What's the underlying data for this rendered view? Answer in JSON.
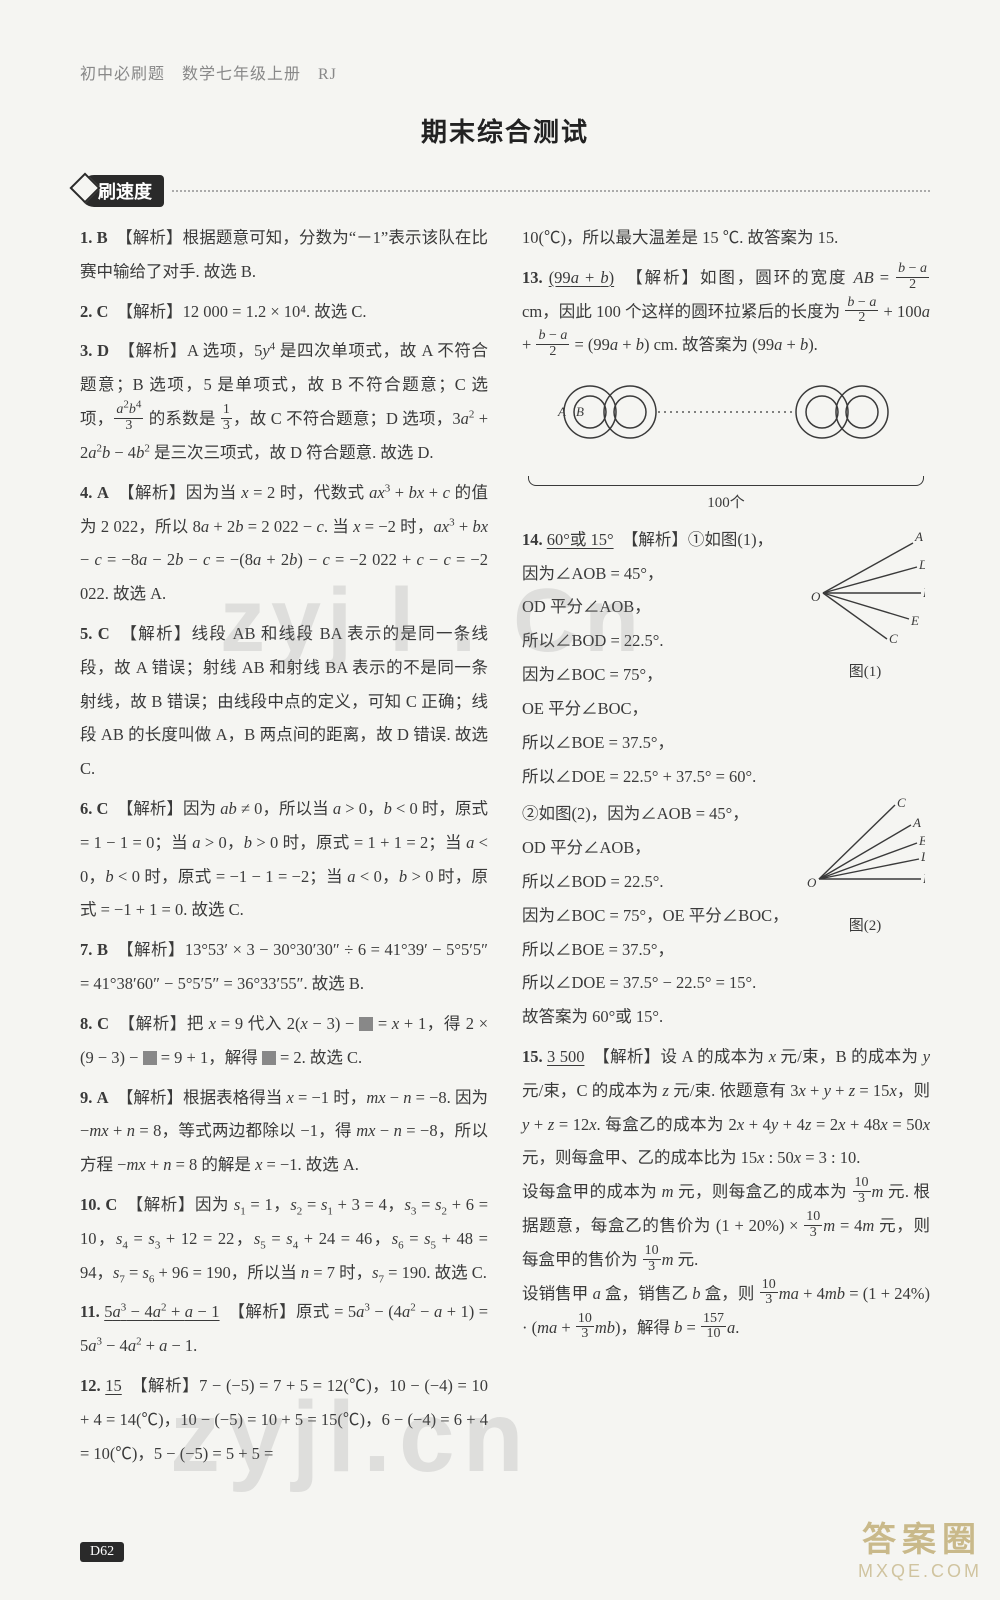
{
  "header": "初中必刷题　数学七年级上册　RJ",
  "title": "期末综合测试",
  "badge": "刷速度",
  "page_badge": "D62",
  "watermarks": {
    "wm1": "zyj l . Cn",
    "wm2": "zyjl.cn",
    "corner_a": "答案圈",
    "corner_b": "MXQE.COM"
  },
  "left": [
    {
      "num": "1.",
      "ans": "B",
      "body": "【解析】根据题意可知，分数为“－1”表示该队在比赛中输给了对手. 故选 B."
    },
    {
      "num": "2.",
      "ans": "C",
      "body": "【解析】12 000 = 1.2 × 10⁴. 故选 C."
    },
    {
      "num": "3.",
      "ans": "D",
      "body_html": "【解析】A 选项，5<span class='i'>y</span><sup>4</sup> 是四次单项式，故 A 不符合题意；B 选项，5 是单项式，故 B 不符合题意；C 选项，<span class='frac'><span class='n'><span class='i'>a</span><sup>2</sup><span class='i'>b</span><sup>4</sup></span><span class='d'>3</span></span> 的系数是 <span class='frac'><span class='n'>1</span><span class='d'>3</span></span>，故 C 不符合题意；D 选项，3<span class='i'>a</span><sup>2</sup> + 2<span class='i'>a</span><sup>2</sup><span class='i'>b</span> − 4<span class='i'>b</span><sup>2</sup> 是三次三项式，故 D 符合题意. 故选 D."
    },
    {
      "num": "4.",
      "ans": "A",
      "body_html": "【解析】因为当 <span class='i'>x</span> = 2 时，代数式 <span class='i'>ax</span><sup>3</sup> + <span class='i'>bx</span> + <span class='i'>c</span> 的值为 2 022，所以 8<span class='i'>a</span> + 2<span class='i'>b</span> = 2 022 − <span class='i'>c</span>. 当 <span class='i'>x</span> = −2 时，<span class='i'>ax</span><sup>3</sup> + <span class='i'>bx</span> − <span class='i'>c</span> = −8<span class='i'>a</span> − 2<span class='i'>b</span> − <span class='i'>c</span> = −(8<span class='i'>a</span> + 2<span class='i'>b</span>) − <span class='i'>c</span> = −2 022 + <span class='i'>c</span> − <span class='i'>c</span> = −2 022. 故选 A."
    },
    {
      "num": "5.",
      "ans": "C",
      "body": "【解析】线段 AB 和线段 BA 表示的是同一条线段，故 A 错误；射线 AB 和射线 BA 表示的不是同一条射线，故 B 错误；由线段中点的定义，可知 C 正确；线段 AB 的长度叫做 A，B 两点间的距离，故 D 错误. 故选 C."
    },
    {
      "num": "6.",
      "ans": "C",
      "body_html": "【解析】因为 <span class='i'>ab</span> ≠ 0，所以当 <span class='i'>a</span> &gt; 0，<span class='i'>b</span> &lt; 0 时，原式 = 1 − 1 = 0；当 <span class='i'>a</span> &gt; 0，<span class='i'>b</span> &gt; 0 时，原式 = 1 + 1 = 2；当 <span class='i'>a</span> &lt; 0，<span class='i'>b</span> &lt; 0 时，原式 = −1 − 1 = −2；当 <span class='i'>a</span> &lt; 0，<span class='i'>b</span> &gt; 0 时，原式 = −1 + 1 = 0. 故选 C."
    },
    {
      "num": "7.",
      "ans": "B",
      "body": "【解析】13°53′ × 3 − 30°30′30″ ÷ 6 = 41°39′ − 5°5′5″ = 41°38′60″ − 5°5′5″ = 36°33′55″. 故选 B."
    },
    {
      "num": "8.",
      "ans": "C",
      "body_html": "【解析】把 <span class='i'>x</span> = 9 代入 2(<span class='i'>x</span> − 3) − <span class='box'></span> = <span class='i'>x</span> + 1，得 2 × (9 − 3) − <span class='box'></span> = 9 + 1，解得 <span class='box'></span> = 2. 故选 C."
    },
    {
      "num": "9.",
      "ans": "A",
      "body_html": "【解析】根据表格得当 <span class='i'>x</span> = −1 时，<span class='i'>mx</span> − <span class='i'>n</span> = −8. 因为 −<span class='i'>mx</span> + <span class='i'>n</span> = 8，等式两边都除以 −1，得 <span class='i'>mx</span> − <span class='i'>n</span> = −8，所以方程 −<span class='i'>mx</span> + <span class='i'>n</span> = 8 的解是 <span class='i'>x</span> = −1. 故选 A."
    },
    {
      "num": "10.",
      "ans": "C",
      "body_html": "【解析】因为 <span class='i'>s</span><sub>1</sub> = 1，<span class='i'>s</span><sub>2</sub> = <span class='i'>s</span><sub>1</sub> + 3 = 4，<span class='i'>s</span><sub>3</sub> = <span class='i'>s</span><sub>2</sub> + 6 = 10，<span class='i'>s</span><sub>4</sub> = <span class='i'>s</span><sub>3</sub> + 12 = 22，<span class='i'>s</span><sub>5</sub> = <span class='i'>s</span><sub>4</sub> + 24 = 46，<span class='i'>s</span><sub>6</sub> = <span class='i'>s</span><sub>5</sub> + 48 = 94，<span class='i'>s</span><sub>7</sub> = <span class='i'>s</span><sub>6</sub> + 96 = 190，所以当 <span class='i'>n</span> = 7 时，<span class='i'>s</span><sub>7</sub> = 190. 故选 C."
    },
    {
      "num": "11.",
      "ans_html": "<span class='u'>5<span class='i'>a</span><sup>3</sup> − 4<span class='i'>a</span><sup>2</sup> + <span class='i'>a</span> − 1</span>",
      "body_html": "【解析】原式 = 5<span class='i'>a</span><sup>3</sup> − (4<span class='i'>a</span><sup>2</sup> − <span class='i'>a</span> + 1) = 5<span class='i'>a</span><sup>3</sup> − 4<span class='i'>a</span><sup>2</sup> + <span class='i'>a</span> − 1."
    },
    {
      "num": "12.",
      "ans_html": "<span class='u'>15</span>",
      "body": "【解析】7 − (−5) = 7 + 5 = 12(℃)，10 − (−4) = 10 + 4 = 14(℃)，10 − (−5) = 10 + 5 = 15(℃)，6 − (−4) = 6 + 4 = 10(℃)，5 − (−5) = 5 + 5 ="
    }
  ],
  "right_intro": "10(℃)，所以最大温差是 15 ℃. 故答案为 15.",
  "q13": {
    "num": "13.",
    "ans_html": "<span class='u'>(99<span class='i'>a</span> + <span class='i'>b</span>)</span>",
    "body_html": "【解析】如图，圆环的宽度 <span class='i'>AB</span> = <span class='frac'><span class='n'><span class='i'>b</span> − <span class='i'>a</span></span><span class='d'>2</span></span> cm，因此 100 个这样的圆环拉紧后的长度为 <span class='frac'><span class='n'><span class='i'>b</span> − <span class='i'>a</span></span><span class='d'>2</span></span> + 100<span class='i'>a</span> + <span class='frac'><span class='n'><span class='i'>b</span> − <span class='i'>a</span></span><span class='d'>2</span></span> = (99<span class='i'>a</span> + <span class='i'>b</span>) cm. 故答案为 (99<span class='i'>a</span> + <span class='i'>b</span>).",
    "figure": {
      "type": "ring-chain",
      "outer_r": 26,
      "inner_r": 16,
      "stroke": "#3a3a3a",
      "stroke_width": 1.5,
      "labels": [
        "A",
        "B"
      ],
      "caption": "100个"
    }
  },
  "q14": {
    "num": "14.",
    "ans_html": "<span class='u'>60°或 15°</span>",
    "lines1": [
      "【解析】①如图(1)，",
      "因为∠AOB = 45°，",
      "OD 平分∠AOB，",
      "所以∠BOD = 22.5°.",
      "因为∠BOC = 75°，",
      "OE 平分∠BOC，",
      "所以∠BOE = 37.5°，",
      "所以∠DOE = 22.5° + 37.5° = 60°."
    ],
    "lines2": [
      "②如图(2)，因为∠AOB = 45°，",
      "OD 平分∠AOB，",
      "所以∠BOD = 22.5°.",
      "因为∠BOC = 75°，OE 平分∠BOC，",
      "所以∠BOE = 37.5°，",
      "所以∠DOE = 37.5° − 22.5° = 15°.",
      "故答案为 60°或 15°."
    ],
    "fig1": {
      "type": "angle-fan",
      "labels": [
        "A",
        "D",
        "B",
        "E",
        "C"
      ],
      "caption": "图(1)",
      "stroke": "#3a3a3a"
    },
    "fig2": {
      "type": "angle-fan",
      "labels": [
        "C",
        "A",
        "E",
        "D",
        "B"
      ],
      "caption": "图(2)",
      "stroke": "#3a3a3a"
    }
  },
  "q15": {
    "num": "15.",
    "ans_html": "<span class='u'>3 500</span>",
    "body_html": "【解析】设 A 的成本为 <span class='i'>x</span> 元/束，B 的成本为 <span class='i'>y</span> 元/束，C 的成本为 <span class='i'>z</span> 元/束. 依题意有 3<span class='i'>x</span> + <span class='i'>y</span> + <span class='i'>z</span> = 15<span class='i'>x</span>，则 <span class='i'>y</span> + <span class='i'>z</span> = 12<span class='i'>x</span>. 每盒乙的成本为 2<span class='i'>x</span> + 4<span class='i'>y</span> + 4<span class='i'>z</span> = 2<span class='i'>x</span> + 48<span class='i'>x</span> = 50<span class='i'>x</span> 元，则每盒甲、乙的成本比为 15<span class='i'>x</span> : 50<span class='i'>x</span> = 3 : 10.<br>设每盒甲的成本为 <span class='i'>m</span> 元，则每盒乙的成本为 <span class='frac'><span class='n'>10</span><span class='d'>3</span></span><span class='i'>m</span> 元. 根据题意，每盒乙的售价为 (1 + 20%) × <span class='frac'><span class='n'>10</span><span class='d'>3</span></span><span class='i'>m</span> = 4<span class='i'>m</span> 元，则每盒甲的售价为 <span class='frac'><span class='n'>10</span><span class='d'>3</span></span><span class='i'>m</span> 元.<br>设销售甲 <span class='i'>a</span> 盒，销售乙 <span class='i'>b</span> 盒，则 <span class='frac'><span class='n'>10</span><span class='d'>3</span></span><span class='i'>ma</span> + 4<span class='i'>mb</span> = (1 + 24%) · (<span class='i'>ma</span> + <span class='frac'><span class='n'>10</span><span class='d'>3</span></span><span class='i'>mb</span>)，解得 <span class='i'>b</span> = <span class='frac'><span class='n'>157</span><span class='d'>10</span></span><span class='i'>a</span>."
  },
  "colors": {
    "text": "#3a3a3a",
    "muted": "#888",
    "badge_bg": "#2a2a2a",
    "bg": "#f5f5f2"
  }
}
